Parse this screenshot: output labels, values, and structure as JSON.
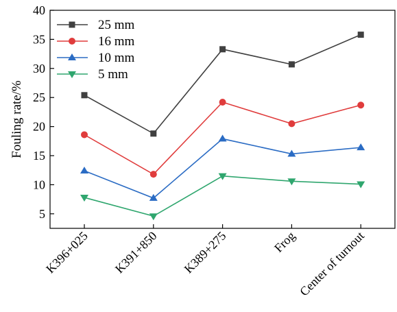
{
  "chart_data": {
    "type": "line",
    "title": "",
    "xlabel": "",
    "ylabel": "Fouling rate/%",
    "ylim": [
      2.5,
      40
    ],
    "yticks": [
      5,
      10,
      15,
      20,
      25,
      30,
      35,
      40
    ],
    "categories": [
      "K396+025",
      "K391+850",
      "K389+275",
      "Frog",
      "Center of turnout"
    ],
    "grid": false,
    "legend_position": "top-left",
    "series": [
      {
        "name": "25 mm",
        "color": "#404040",
        "marker": "square",
        "values": [
          25.4,
          18.8,
          33.3,
          30.7,
          35.8
        ]
      },
      {
        "name": "16 mm",
        "color": "#e03c3c",
        "marker": "circle",
        "values": [
          18.6,
          11.8,
          24.2,
          20.5,
          23.7
        ]
      },
      {
        "name": "10 mm",
        "color": "#2b6cc4",
        "marker": "triangle-up",
        "values": [
          12.4,
          7.7,
          17.9,
          15.3,
          16.4
        ]
      },
      {
        "name": "5 mm",
        "color": "#2fa66e",
        "marker": "triangle-down",
        "values": [
          7.8,
          4.6,
          11.5,
          10.6,
          10.1
        ]
      }
    ]
  }
}
